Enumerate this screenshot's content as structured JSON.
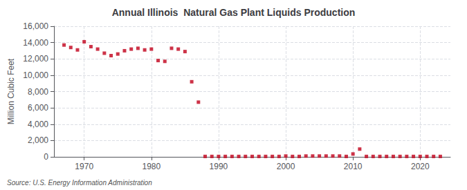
{
  "chart_data": {
    "type": "scatter",
    "title": "Annual Illinois  Natural Gas Plant Liquids Production",
    "ylabel": "Million Cubic Feet",
    "source": "Source: U.S. Energy Information Administration",
    "color": "#c0001a",
    "marker": "square",
    "grid": true,
    "xlim": [
      1965.5,
      2024.5
    ],
    "xticks": [
      1970,
      1980,
      1990,
      2000,
      2010,
      2020
    ],
    "ylim": [
      0,
      16000
    ],
    "yticks": [
      0,
      {
        "value": 2000,
        "label": "2,000"
      },
      {
        "value": 4000,
        "label": "4,000"
      },
      {
        "value": 6000,
        "label": "6,000"
      },
      {
        "value": 8000,
        "label": "8,000"
      },
      {
        "value": 10000,
        "label": "10,000"
      },
      {
        "value": 12000,
        "label": "12,000"
      },
      {
        "value": 14000,
        "label": "14,000"
      },
      {
        "value": 16000,
        "label": "16,000"
      }
    ],
    "x": [
      1967,
      1968,
      1969,
      1970,
      1971,
      1972,
      1973,
      1974,
      1975,
      1976,
      1977,
      1978,
      1979,
      1980,
      1981,
      1982,
      1983,
      1984,
      1985,
      1986,
      1987,
      1988,
      1989,
      1990,
      1991,
      1992,
      1993,
      1994,
      1995,
      1996,
      1997,
      1998,
      1999,
      2000,
      2001,
      2002,
      2003,
      2004,
      2005,
      2006,
      2007,
      2008,
      2009,
      2010,
      2011,
      2012,
      2013,
      2014,
      2015,
      2016,
      2017,
      2018,
      2019,
      2020,
      2021,
      2022,
      2023
    ],
    "values": [
      13700,
      13400,
      13100,
      14100,
      13500,
      13200,
      12700,
      12400,
      12600,
      13000,
      13200,
      13300,
      13100,
      13200,
      11800,
      11700,
      13300,
      13200,
      12900,
      9200,
      6700,
      50,
      50,
      50,
      50,
      50,
      50,
      50,
      50,
      50,
      50,
      50,
      50,
      100,
      50,
      50,
      100,
      100,
      100,
      100,
      100,
      100,
      50,
      350,
      950,
      50,
      50,
      50,
      50,
      50,
      50,
      50,
      50,
      50,
      50,
      50,
      50
    ]
  }
}
